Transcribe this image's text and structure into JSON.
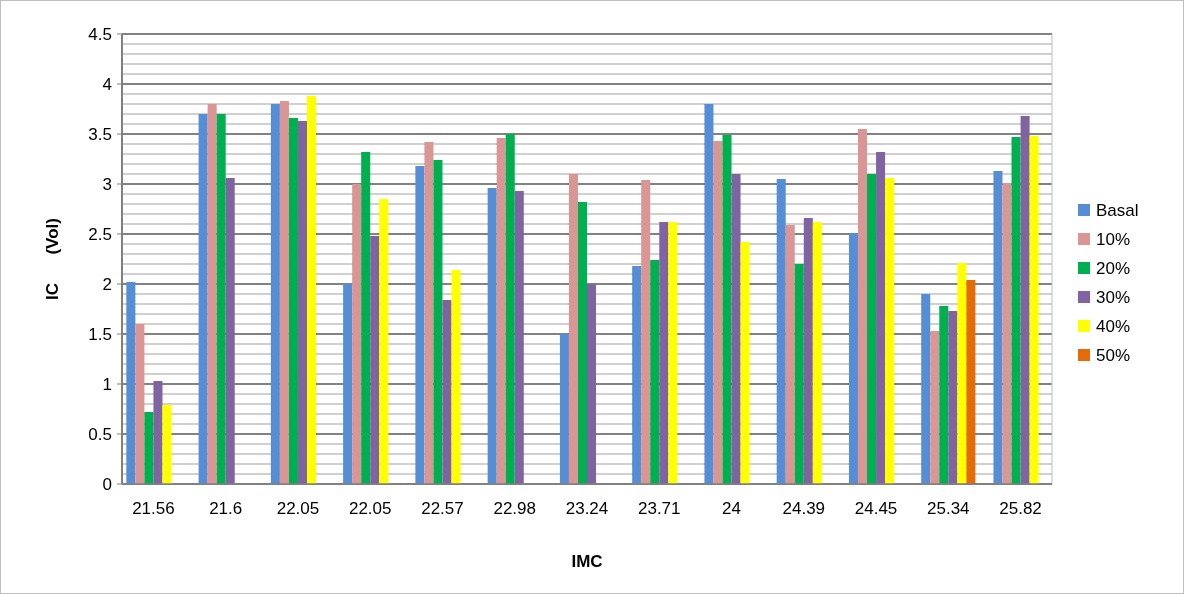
{
  "chart_data": {
    "type": "bar",
    "xlabel": "IMC",
    "ylabel": "IC      (Vol)",
    "categories": [
      "21.56",
      "21.6",
      "22.05",
      "22.05",
      "22.57",
      "22.98",
      "23.24",
      "23.71",
      "24",
      "24.39",
      "24.45",
      "25.34",
      "25.82"
    ],
    "series": [
      {
        "name": "Basal",
        "color": "#558ed5",
        "values": [
          2.02,
          3.7,
          3.8,
          2.0,
          3.18,
          2.96,
          1.5,
          2.18,
          3.8,
          3.05,
          2.51,
          1.9,
          3.13
        ]
      },
      {
        "name": "10%",
        "color": "#d99694",
        "values": [
          1.6,
          3.8,
          3.83,
          3.0,
          3.42,
          3.46,
          3.1,
          3.04,
          3.43,
          2.59,
          3.55,
          1.53,
          3.01
        ]
      },
      {
        "name": "20%",
        "color": "#00b050",
        "values": [
          0.72,
          3.7,
          3.66,
          3.32,
          3.24,
          3.5,
          2.82,
          2.24,
          3.49,
          2.2,
          3.1,
          1.78,
          3.47
        ]
      },
      {
        "name": "30%",
        "color": "#8064a2",
        "values": [
          1.03,
          3.06,
          3.63,
          2.48,
          1.84,
          2.93,
          2.0,
          2.62,
          3.1,
          2.66,
          3.32,
          1.73,
          3.68
        ]
      },
      {
        "name": "40%",
        "color": "#ffff00",
        "values": [
          0.79,
          null,
          3.88,
          2.85,
          2.14,
          null,
          null,
          2.62,
          2.42,
          2.62,
          3.06,
          2.21,
          3.48
        ]
      },
      {
        "name": "50%",
        "color": "#e36c09",
        "values": [
          null,
          null,
          null,
          null,
          null,
          null,
          null,
          null,
          null,
          null,
          null,
          2.04,
          null
        ]
      }
    ],
    "ylim": [
      0,
      4.5
    ],
    "yticks": [
      0,
      0.5,
      1,
      1.5,
      2,
      2.5,
      3,
      3.5,
      4,
      4.5
    ],
    "grid": true,
    "legend": "right"
  }
}
